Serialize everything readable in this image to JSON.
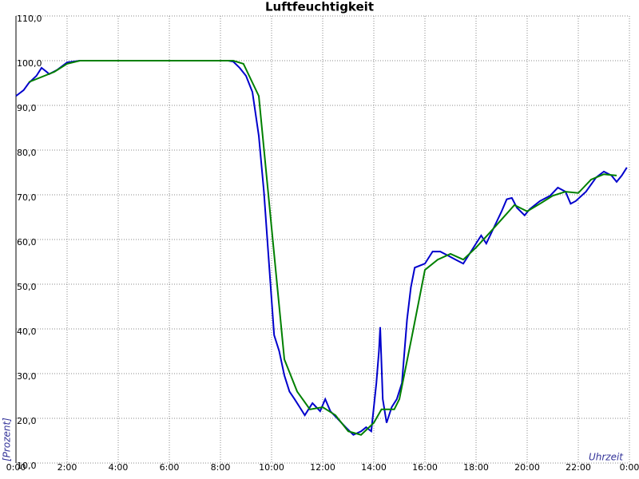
{
  "chart_data": {
    "type": "line",
    "title": "Luftfeuchtigkeit",
    "x_label": "Uhrzeit",
    "y_label": "[Prozent]",
    "xlim": [
      0,
      24
    ],
    "ylim": [
      10,
      110
    ],
    "grid": true,
    "xticks": [
      {
        "value": 0,
        "label": "0:00"
      },
      {
        "value": 2,
        "label": "2:00"
      },
      {
        "value": 4,
        "label": "4:00"
      },
      {
        "value": 6,
        "label": "6:00"
      },
      {
        "value": 8,
        "label": "8:00"
      },
      {
        "value": 10,
        "label": "10:00"
      },
      {
        "value": 12,
        "label": "12:00"
      },
      {
        "value": 14,
        "label": "14:00"
      },
      {
        "value": 16,
        "label": "16:00"
      },
      {
        "value": 18,
        "label": "18:00"
      },
      {
        "value": 20,
        "label": "20:00"
      },
      {
        "value": 22,
        "label": "22:00"
      },
      {
        "value": 24,
        "label": "0:00"
      }
    ],
    "yticks": [
      {
        "value": 10,
        "label": "10,0"
      },
      {
        "value": 20,
        "label": "20,0"
      },
      {
        "value": 30,
        "label": "30,0"
      },
      {
        "value": 40,
        "label": "40,0"
      },
      {
        "value": 50,
        "label": "50,0"
      },
      {
        "value": 60,
        "label": "60,0"
      },
      {
        "value": 70,
        "label": "70,0"
      },
      {
        "value": 80,
        "label": "80,0"
      },
      {
        "value": 90,
        "label": "90,0"
      },
      {
        "value": 100,
        "label": "100,0"
      },
      {
        "value": 110,
        "label": "110,0"
      }
    ],
    "series": [
      {
        "color": "#0000cc",
        "x": [
          0,
          0.3,
          0.5,
          0.8,
          1.0,
          1.2,
          1.3,
          1.6,
          2.0,
          2.5,
          3.0,
          4.0,
          6.0,
          8.3,
          8.5,
          8.75,
          9.0,
          9.25,
          9.5,
          9.7,
          9.9,
          10.1,
          10.3,
          10.5,
          10.7,
          10.9,
          11.1,
          11.3,
          11.6,
          11.9,
          12.1,
          12.3,
          12.6,
          12.9,
          13.2,
          13.5,
          13.7,
          13.9,
          14.0,
          14.1,
          14.2,
          14.25,
          14.35,
          14.5,
          14.7,
          14.9,
          15.1,
          15.3,
          15.45,
          15.6,
          16.0,
          16.3,
          16.6,
          16.9,
          17.2,
          17.5,
          17.8,
          18.2,
          18.4,
          18.7,
          19.0,
          19.2,
          19.4,
          19.6,
          19.9,
          20.1,
          20.5,
          20.9,
          21.2,
          21.5,
          21.7,
          21.9,
          22.3,
          22.7,
          23.0,
          23.3,
          23.5,
          23.7,
          23.9
        ],
        "values": [
          92.1,
          93.4,
          95,
          96.6,
          98.4,
          97.5,
          97,
          97.9,
          99.6,
          100,
          100,
          100,
          100,
          100,
          99.8,
          98.4,
          96.6,
          93,
          83.2,
          70.7,
          54.6,
          38.6,
          35,
          29.6,
          26,
          24.3,
          22.5,
          20.7,
          23.4,
          21.6,
          24.3,
          21.6,
          19.8,
          18,
          16.3,
          17.1,
          18,
          17.1,
          22.5,
          27.9,
          35,
          40.4,
          24.3,
          19,
          22.5,
          24.3,
          27.9,
          42.1,
          49.3,
          53.7,
          54.6,
          57.3,
          57.3,
          56.4,
          55.5,
          54.6,
          57.3,
          60.9,
          59.1,
          62.7,
          66.3,
          69,
          69.3,
          67.1,
          65.4,
          66.8,
          68.6,
          69.8,
          71.6,
          70.7,
          68,
          68.6,
          70.7,
          73.9,
          75.2,
          74.3,
          72.9,
          74.3,
          76.1
        ]
      },
      {
        "color": "#008000",
        "x": [
          0.5,
          1.5,
          2.0,
          2.5,
          4.0,
          8.5,
          8.9,
          9.5,
          10.5,
          11.0,
          11.5,
          12.0,
          12.5,
          13.0,
          13.5,
          14.0,
          14.3,
          14.8,
          15.0,
          15.5,
          16.0,
          16.5,
          17.0,
          17.5,
          18.0,
          18.5,
          19.0,
          19.5,
          20.0,
          20.5,
          21.0,
          21.5,
          22.0,
          22.5,
          23.0,
          23.5
        ],
        "values": [
          95.2,
          97.5,
          99.3,
          100,
          100,
          100,
          99.3,
          92.1,
          33.2,
          26,
          22,
          22.5,
          20.7,
          17.1,
          16.3,
          19,
          22,
          22,
          24.3,
          38.6,
          53.2,
          55.5,
          56.8,
          55.5,
          58.2,
          61.3,
          64.5,
          67.7,
          66.3,
          68,
          69.8,
          70.7,
          70.4,
          73.4,
          74.6,
          74.3
        ]
      }
    ]
  }
}
